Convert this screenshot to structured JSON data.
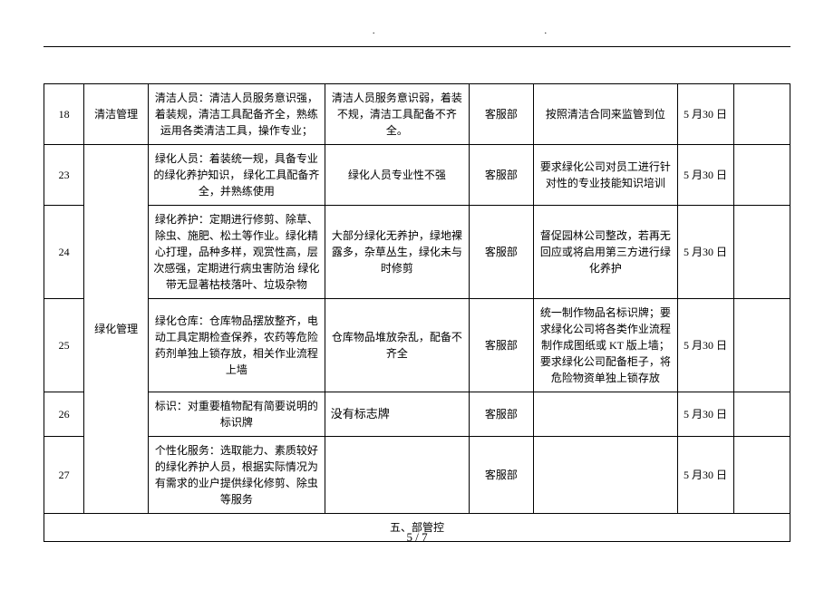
{
  "header": {
    "dot_left": "·",
    "dot_right": "·"
  },
  "table": {
    "rows": [
      {
        "num": "18",
        "cat": "清洁管理",
        "std": "清洁人员：清洁人员服务意识强，着装规，清洁工具配备齐全，熟练运用各类清洁工具，操作专业；",
        "issue": "清洁人员服务意识弱，着装不规，清洁工具配备不齐全。",
        "dept": "客服部",
        "action": "按照清洁合同来监管到位",
        "date": "5 月30 日"
      },
      {
        "num": "23",
        "std": "绿化人员：着装统一规，具备专业的绿化养护知识， 绿化工具配备齐全，并熟练使用",
        "issue": "绿化人员专业性不强",
        "dept": "客服部",
        "action": "要求绿化公司对员工进行针对性的专业技能知识培训",
        "date": "5 月30 日"
      },
      {
        "num": "24",
        "std": "绿化养护：定期进行修剪、除草、除虫、施肥、松土等作业。绿化精心打理，品种多样，观赏性高，层次感强，定期进行病虫害防治 绿化带无显著枯枝落叶、垃圾杂物",
        "issue": "大部分绿化无养护，绿地裸露多，杂草丛生，绿化未与时修剪",
        "dept": "客服部",
        "action": "督促园林公司整改，若再无回应或将启用第三方进行绿化养护",
        "date": "5 月30 日"
      },
      {
        "num": "25",
        "cat": "绿化管理",
        "std": "绿化仓库：仓库物品摆放整齐，电动工具定期检查保养，农药等危险药剂单独上锁存放，相关作业流程上墙",
        "issue": "仓库物品堆放杂乱，配备不齐全",
        "dept": "客服部",
        "action": "统一制作物品名标识牌；要求绿化公司将各类作业流程制作成图纸或 KT 版上墙；要求绿化公司配备柜子，将危险物资单独上锁存放",
        "date": "5 月30 日"
      },
      {
        "num": "26",
        "std": "标识：对重要植物配有简要说明的标识牌",
        "issue": "没有标志牌",
        "dept": "客服部",
        "action": "",
        "date": "5 月30 日"
      },
      {
        "num": "27",
        "std": "个性化服务：选取能力、素质较好的绿化养护人员，根据实际情况为有需求的业户提供绿化修剪、除虫等服务",
        "issue": "",
        "dept": "客服部",
        "action": "",
        "date": "5 月30 日"
      }
    ],
    "section_title": "五、部管控"
  },
  "footer": {
    "page_current": "5",
    "page_sep": " / ",
    "page_total": "7"
  }
}
